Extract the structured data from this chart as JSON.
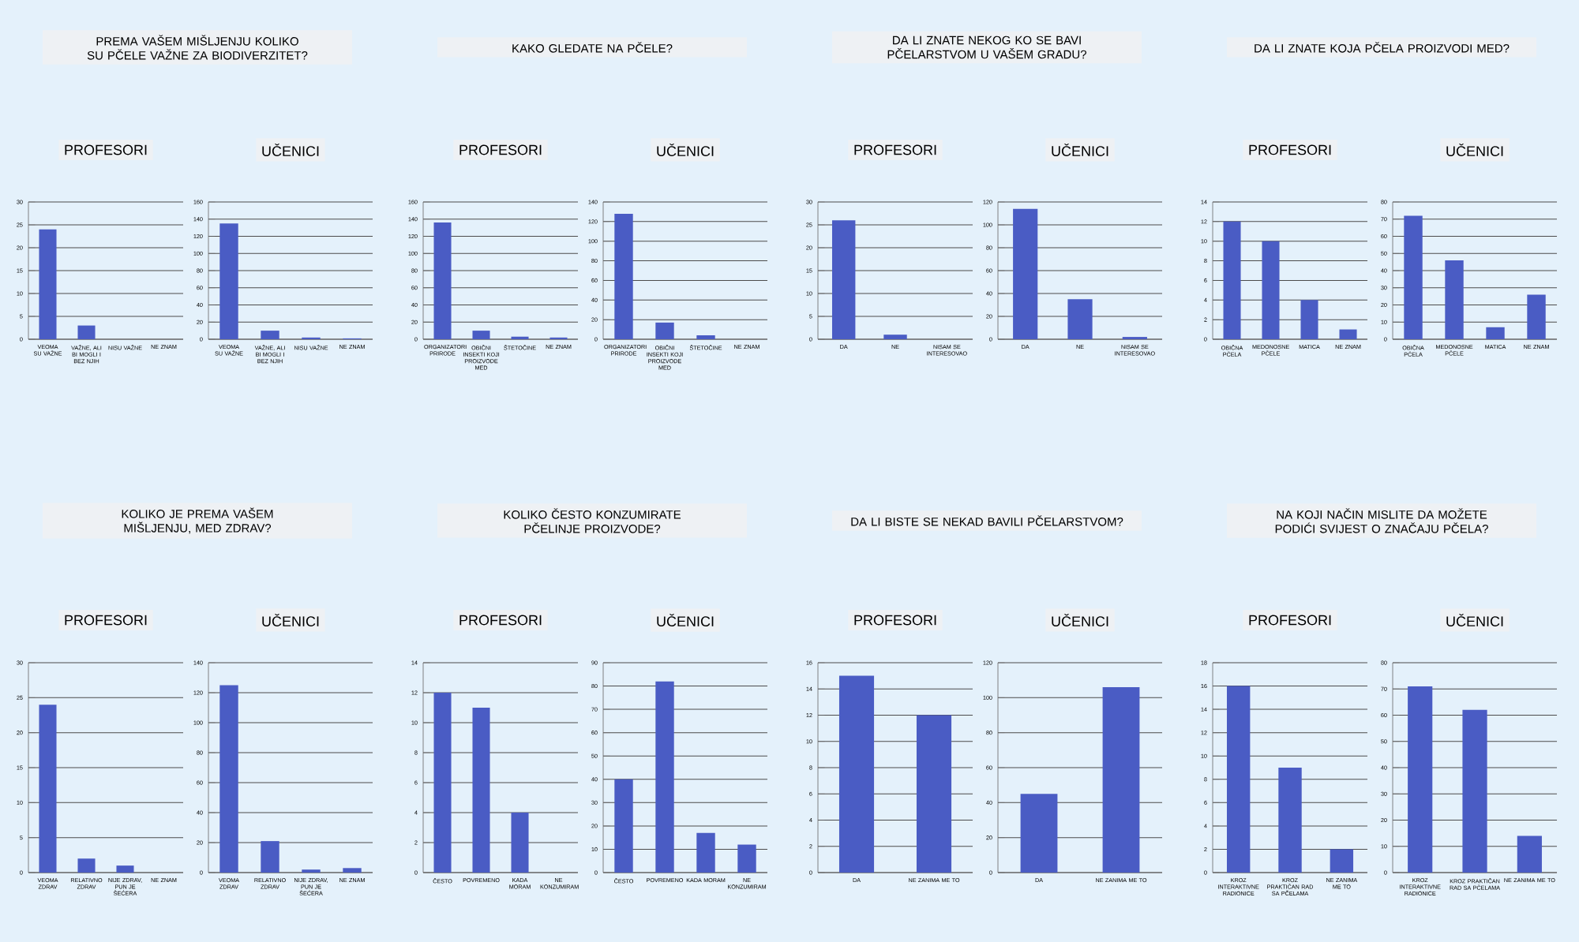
{
  "chart_data": [
    {
      "type": "bar",
      "title": "PREMA VAŠEM MIŠLJENJU KOLIKO SU PČELE VAŽNE ZA  BIODIVERZITET?",
      "subtitle": "PROFESORI",
      "categories": [
        "VEOMA SU VAŽNE",
        "VAŽNE, ALI BI MOGLI I BEZ NJIH",
        "NISU VAŽNE",
        "NE ZNAM"
      ],
      "values": [
        24,
        3,
        0,
        0
      ],
      "color": "#4a5cc4",
      "ylim": [
        0,
        30
      ],
      "yticks": [
        0,
        5,
        10,
        15,
        20,
        25,
        30
      ],
      "grid": "y"
    },
    {
      "type": "bar",
      "subtitle": "UČENICI",
      "categories": [
        "VEOMA SU VAŽNE",
        "VAŽNE, ALI BI MOGLI I BEZ NJIH",
        "NISU VAŽNE",
        "NE ZNAM"
      ],
      "values": [
        135,
        10,
        2,
        1
      ],
      "color": "#4a5cc4",
      "ylim": [
        0,
        160
      ],
      "yticks": [
        0,
        20,
        40,
        60,
        80,
        100,
        120,
        140,
        160
      ],
      "grid": "y"
    },
    {
      "type": "bar",
      "title": "KAKO GLEDATE NA PČELE?",
      "subtitle": "PROFESORI",
      "categories": [
        "ORGANIZATORI PRIRODE",
        "OBIČNI INSEKTI KOJI PROIZVODE MED",
        "ŠTETOČINE",
        "NE ZNAM"
      ],
      "values": [
        136,
        10,
        3,
        2
      ],
      "color": "#4a5cc4",
      "ylim": [
        0,
        160
      ],
      "yticks": [
        0,
        20,
        40,
        60,
        80,
        100,
        120,
        140,
        160
      ],
      "grid": "y"
    },
    {
      "type": "bar",
      "subtitle": "UČENICI",
      "categories": [
        "ORGANIZATORI PRIRODE",
        "OBIČNI INSEKTI KOJI PROIZVODE MED",
        "ŠTETOČINE",
        "NE ZNAM"
      ],
      "values": [
        128,
        17,
        4,
        0
      ],
      "color": "#4a5cc4",
      "ylim": [
        0,
        140
      ],
      "yticks": [
        0,
        20,
        40,
        60,
        80,
        100,
        120,
        140
      ],
      "grid": "y"
    },
    {
      "type": "bar",
      "title": "DA LI ZNATE NEKOG KO SE BAVI PČELARSTVOM U VAŠEM GRADU?",
      "subtitle": "PROFESORI",
      "categories": [
        "DA",
        "NE",
        "NISAM SE INTERESOVAO"
      ],
      "values": [
        26,
        1,
        0
      ],
      "color": "#4a5cc4",
      "ylim": [
        0,
        30
      ],
      "yticks": [
        0,
        5,
        10,
        15,
        20,
        25,
        30
      ],
      "grid": "y"
    },
    {
      "type": "bar",
      "subtitle": "UČENICI",
      "categories": [
        "DA",
        "NE",
        "NISAM SE INTERESOVAO"
      ],
      "values": [
        114,
        35,
        2
      ],
      "color": "#4a5cc4",
      "ylim": [
        0,
        120
      ],
      "yticks": [
        0,
        20,
        40,
        60,
        80,
        100,
        120
      ],
      "grid": "y"
    },
    {
      "type": "bar",
      "title": "DA LI ZNATE KOJA PČELA PROIZVODI MED?",
      "subtitle": "PROFESORI",
      "categories": [
        "OBIČNA PČELA",
        "MEDONOSNE PČELE",
        "MATICA",
        "NE ZNAM"
      ],
      "values": [
        12,
        10,
        4,
        1
      ],
      "color": "#4a5cc4",
      "ylim": [
        0,
        14
      ],
      "yticks": [
        0,
        2,
        4,
        6,
        8,
        10,
        12,
        14
      ],
      "grid": "y"
    },
    {
      "type": "bar",
      "subtitle": "UČENICI",
      "categories": [
        "OBIČNA PČELA",
        "MEDONOSNE PČELE",
        "MATICA",
        "NE ZNAM"
      ],
      "values": [
        72,
        46,
        7,
        26
      ],
      "color": "#4a5cc4",
      "ylim": [
        0,
        80
      ],
      "yticks": [
        0,
        10,
        20,
        30,
        40,
        50,
        60,
        70,
        80
      ],
      "grid": "y"
    },
    {
      "type": "bar",
      "title": "KOLIKO JE PREMA VAŠEM MIŠLJENJU, MED ZDRAV?",
      "subtitle": "PROFESORI",
      "categories": [
        "VEOMA ZDRAV",
        "RELATIVNO ZDRAV",
        "NIJE ZDRAV, PUN JE ŠEĆERA",
        "NE ZNAM"
      ],
      "values": [
        24,
        2,
        1,
        0
      ],
      "color": "#4a5cc4",
      "ylim": [
        0,
        30
      ],
      "yticks": [
        0,
        5,
        10,
        15,
        20,
        25,
        30
      ],
      "grid": "y"
    },
    {
      "type": "bar",
      "subtitle": "UČENICI",
      "categories": [
        "VEOMA ZDRAV",
        "RELATIVNO ZDRAV",
        "NIJE ZDRAV, PUN JE ŠEĆERA",
        "NE ZNAM"
      ],
      "values": [
        125,
        21,
        2,
        3
      ],
      "color": "#4a5cc4",
      "ylim": [
        0,
        140
      ],
      "yticks": [
        0,
        20,
        40,
        60,
        80,
        100,
        120,
        140
      ],
      "grid": "y"
    },
    {
      "type": "bar",
      "title": "KOLIKO ČESTO KONZUMIRATE PČELINJE PROIZVODE?",
      "subtitle": "PROFESORI",
      "categories": [
        "ČESTO",
        "POVREMENO",
        "KADA MORAM",
        "NE KONZUMIRAM"
      ],
      "values": [
        12,
        11,
        4,
        0
      ],
      "color": "#4a5cc4",
      "ylim": [
        0,
        14
      ],
      "yticks": [
        0,
        2,
        4,
        6,
        8,
        10,
        12,
        14
      ],
      "grid": "y"
    },
    {
      "type": "bar",
      "subtitle": "UČENICI",
      "categories": [
        "ČESTO",
        "POVREMENO",
        "KADA MORAM",
        "NE KONZUMIRAM"
      ],
      "values": [
        40,
        82,
        17,
        12
      ],
      "color": "#4a5cc4",
      "ylim": [
        0,
        90
      ],
      "yticks": [
        0,
        10,
        20,
        30,
        40,
        50,
        60,
        70,
        80,
        90
      ],
      "grid": "y"
    },
    {
      "type": "bar",
      "title": "DA LI BISTE SE NEKAD BAVILI PČELARSTVOM?",
      "subtitle": "PROFESORI",
      "categories": [
        "DA",
        "NE ZANIMA ME TO"
      ],
      "values": [
        15,
        12
      ],
      "color": "#4a5cc4",
      "ylim": [
        0,
        16
      ],
      "yticks": [
        0,
        2,
        4,
        6,
        8,
        10,
        12,
        14,
        16
      ],
      "grid": "y"
    },
    {
      "type": "bar",
      "subtitle": "UČENICI",
      "categories": [
        "DA",
        "NE ZANIMA ME TO"
      ],
      "values": [
        45,
        106
      ],
      "color": "#4a5cc4",
      "ylim": [
        0,
        120
      ],
      "yticks": [
        0,
        20,
        40,
        60,
        80,
        100,
        120
      ],
      "grid": "y"
    },
    {
      "type": "bar",
      "title": "NA KOJI NAČIN MISLITE DA MOŽETE PODIĆI SVIJEST O ZNAČAJU PČELA?",
      "subtitle": "PROFESORI",
      "categories": [
        "KROZ INTERAKTIVNE RADIONICE",
        "KROZ PRAKTIČAN RAD SA PČELAMA",
        "NE ZANIMA ME TO"
      ],
      "values": [
        16,
        9,
        2
      ],
      "color": "#4a5cc4",
      "ylim": [
        0,
        18
      ],
      "yticks": [
        0,
        2,
        4,
        6,
        8,
        10,
        12,
        14,
        16,
        18
      ],
      "grid": "y"
    },
    {
      "type": "bar",
      "subtitle": "UČENICI",
      "categories": [
        "KROZ INTERAKTIVNE RADIONICE",
        "KROZ PRAKTIČAN RAD SA PČELAMA",
        "NE ZANIMA ME TO"
      ],
      "values": [
        71,
        62,
        14
      ],
      "color": "#4a5cc4",
      "ylim": [
        0,
        80
      ],
      "yticks": [
        0,
        10,
        20,
        30,
        40,
        50,
        60,
        70,
        80
      ],
      "grid": "y"
    }
  ]
}
